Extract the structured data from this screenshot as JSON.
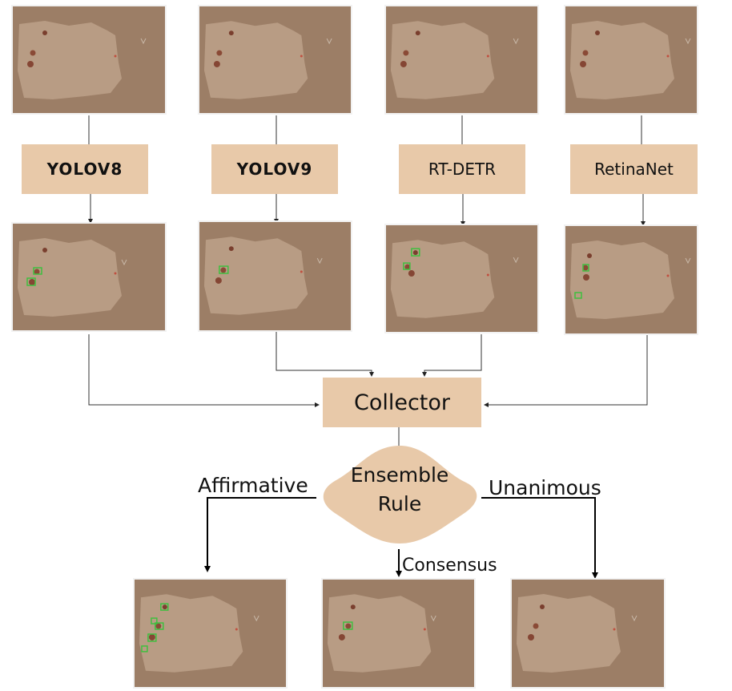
{
  "models": [
    {
      "name": "YOLOV8",
      "bold": true
    },
    {
      "name": "YOLOV9",
      "bold": true
    },
    {
      "name": "RT-DETR",
      "bold": false
    },
    {
      "name": "RetinaNet",
      "bold": false
    }
  ],
  "collector": "Collector",
  "ensemble": {
    "line1": "Ensemble",
    "line2": "Rule"
  },
  "rules": {
    "affirmative": "Affirmative",
    "consensus": "Consensus",
    "unanimous": "Unanimous"
  },
  "colors": {
    "model_box": "#e8c9a9",
    "image_bg": "#9c7e66",
    "detection_box": "#3fbf3f",
    "skin": "#b89c84"
  },
  "detections": {
    "yolov8": 2,
    "yolov9": 1,
    "rt_detr": 2,
    "retinanet": 2,
    "affirmative": 5,
    "consensus": 1,
    "unanimous": 0
  }
}
